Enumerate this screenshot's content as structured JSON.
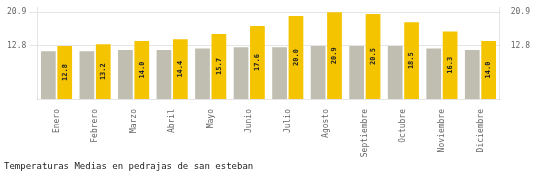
{
  "chart_data": {
    "type": "bar",
    "title": "Temperaturas Medias en pedrajas de san esteban",
    "categories": [
      "Enero",
      "Febrero",
      "Marzo",
      "Abril",
      "Mayo",
      "Junio",
      "Julio",
      "Agosto",
      "Septiembre",
      "Octubre",
      "Noviembre",
      "Diciembre"
    ],
    "series": [
      {
        "color": "#C0BEB0",
        "values": [
          11.5,
          11.5,
          11.8,
          11.8,
          12.2,
          12.5,
          12.5,
          12.8,
          12.8,
          12.8,
          12.2,
          11.8
        ]
      },
      {
        "color": "#F5C400",
        "values": [
          12.8,
          13.2,
          14.0,
          14.4,
          15.7,
          17.6,
          20.0,
          20.9,
          20.5,
          18.5,
          16.3,
          14.0
        ],
        "value_labels": [
          "12.8",
          "13.2",
          "14.0",
          "14.4",
          "15.7",
          "17.6",
          "20.0",
          "20.9",
          "20.5",
          "18.5",
          "16.3",
          "14.0"
        ],
        "data_labels": true
      }
    ],
    "ylim": [
      0,
      22.0
    ],
    "yticks": [
      12.8,
      20.9
    ],
    "y2lim": [
      0,
      22.0
    ],
    "y2ticks": [
      12.8,
      20.9
    ],
    "grid": true
  }
}
